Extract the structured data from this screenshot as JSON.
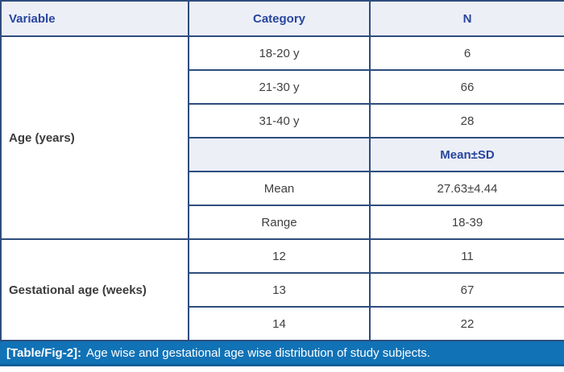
{
  "table": {
    "columns": [
      "Variable",
      "Category",
      "N"
    ],
    "groups": [
      {
        "variable": "Age (years)",
        "rows": [
          {
            "category": "18-20 y",
            "n": "6"
          },
          {
            "category": "21-30 y",
            "n": "66"
          },
          {
            "category": "31-40 y",
            "n": "28"
          },
          {
            "category": "",
            "n": "Mean±SD"
          },
          {
            "category": "Mean",
            "n": "27.63±4.44"
          },
          {
            "category": "Range",
            "n": "18-39"
          }
        ]
      },
      {
        "variable": "Gestational age (weeks)",
        "rows": [
          {
            "category": "12",
            "n": "11"
          },
          {
            "category": "13",
            "n": "67"
          },
          {
            "category": "14",
            "n": "22"
          }
        ]
      }
    ]
  },
  "caption": {
    "label": "[Table/Fig-2]:",
    "text": "Age wise and gestational age wise distribution of study subjects."
  },
  "colors": {
    "border": "#2e4d7d",
    "header_bg": "#edeff7",
    "header_text": "#27459e",
    "body_text": "#404040",
    "caption_bg": "#1172b6",
    "caption_text": "#ffffff"
  }
}
